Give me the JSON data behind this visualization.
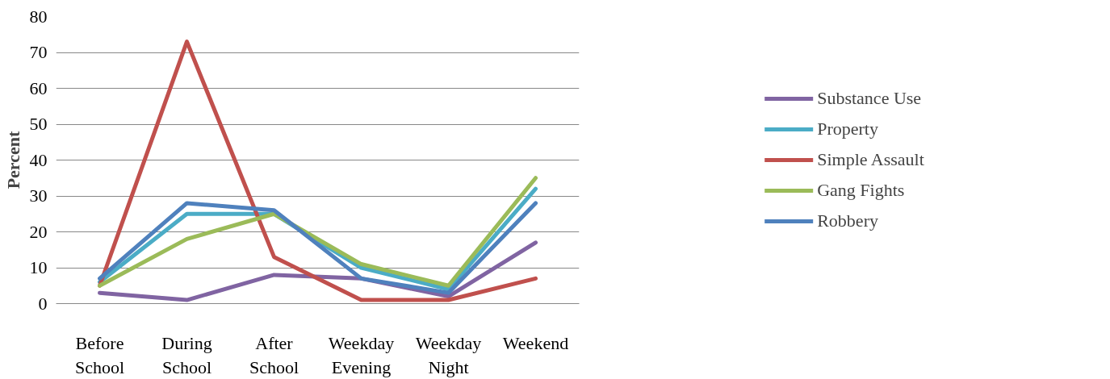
{
  "chart_data": {
    "type": "line",
    "ylabel": "Percent",
    "categories": [
      "Before School",
      "During School",
      "After School",
      "Weekday Evening",
      "Weekday Night",
      "Weekend"
    ],
    "series": [
      {
        "name": "Substance Use",
        "color": "#8064a2",
        "values": [
          3,
          1,
          8,
          7,
          2,
          17
        ]
      },
      {
        "name": "Property",
        "color": "#4bacc6",
        "values": [
          6,
          25,
          25,
          10,
          4,
          32
        ]
      },
      {
        "name": "Simple Assault",
        "color": "#c0504d",
        "values": [
          5,
          73,
          13,
          1,
          1,
          7
        ]
      },
      {
        "name": "Gang Fights",
        "color": "#9bbb59",
        "values": [
          5,
          18,
          25,
          11,
          5,
          35
        ]
      },
      {
        "name": "Robbery",
        "color": "#4f81bd",
        "values": [
          7,
          28,
          26,
          7,
          3,
          28
        ]
      }
    ],
    "ylim": [
      0,
      80
    ],
    "yticks": [
      0,
      10,
      20,
      30,
      40,
      50,
      60,
      70,
      80
    ],
    "grid": "y",
    "legend": "right",
    "marker": "none",
    "line_style": "solid"
  }
}
